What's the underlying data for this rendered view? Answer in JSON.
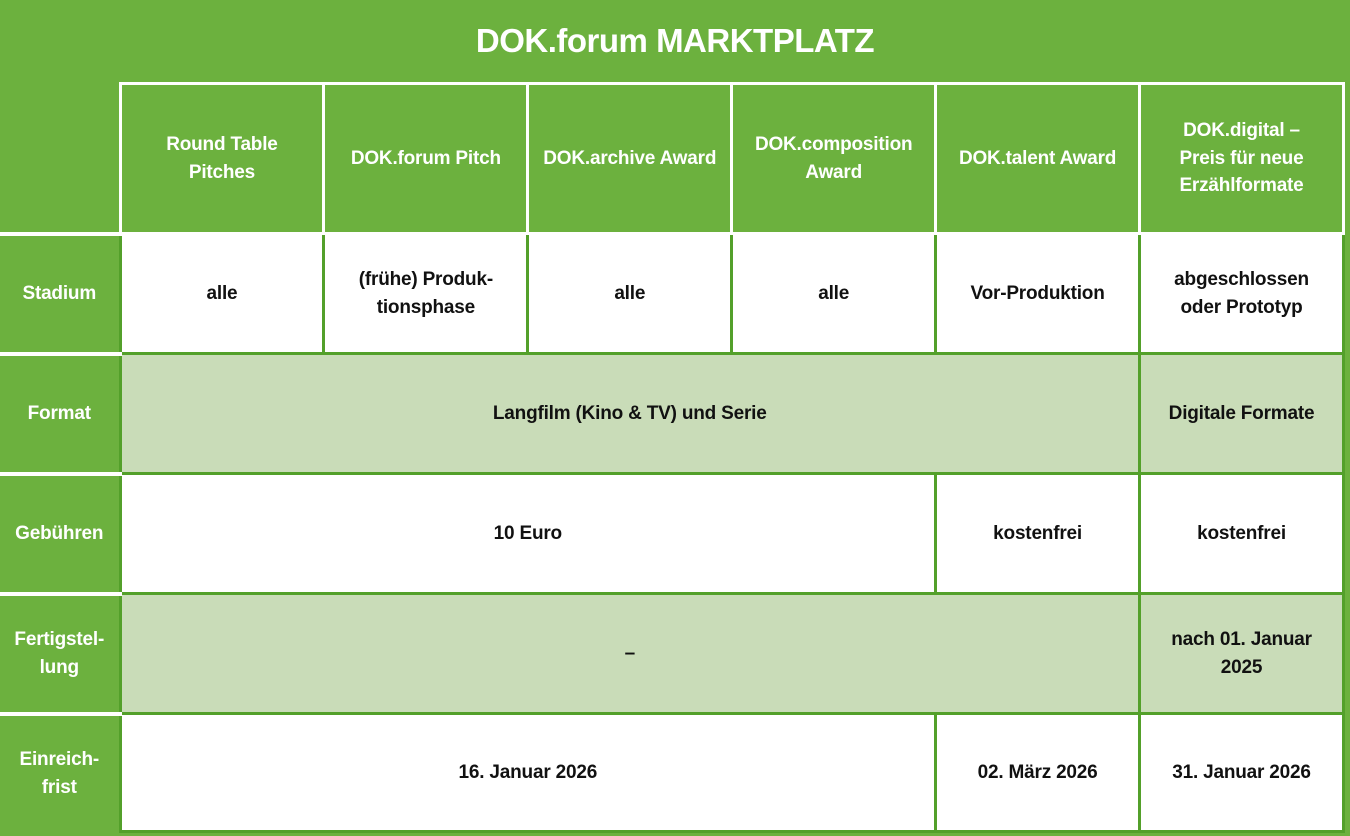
{
  "title": "DOK.forum MARKTPLATZ",
  "colors": {
    "green": "#6cb13e",
    "light_green": "#c9dcb8",
    "border_green": "#53a02a",
    "header_border_white": "#ffffff",
    "text_dark": "#111111",
    "text_white": "#ffffff"
  },
  "header": {
    "columns": [
      {
        "label": "Round Table\nPitches"
      },
      {
        "label": "DOK.forum Pitch"
      },
      {
        "label": "DOK.archive Award"
      },
      {
        "label": "DOK.composition\nAward"
      },
      {
        "label": "DOK.talent Award"
      },
      {
        "label": "DOK.digital –\nPreis für neue\nErzählformate"
      }
    ]
  },
  "rows": [
    {
      "label": "Stadium",
      "cells": [
        {
          "text": "alle",
          "span": 1
        },
        {
          "text": "(frühe) Produk-\ntionsphase",
          "span": 1
        },
        {
          "text": "alle",
          "span": 1
        },
        {
          "text": "alle",
          "span": 1
        },
        {
          "text": "Vor-Produktion",
          "span": 1
        },
        {
          "text": "abgeschlossen\noder Prototyp",
          "span": 1
        }
      ]
    },
    {
      "label": "Format",
      "cells": [
        {
          "text": "Langfilm (Kino & TV) und Serie",
          "span": 5
        },
        {
          "text": "Digitale Formate",
          "span": 1
        }
      ]
    },
    {
      "label": "Gebühren",
      "cells": [
        {
          "text": "10 Euro",
          "span": 4
        },
        {
          "text": "kostenfrei",
          "span": 1
        },
        {
          "text": "kostenfrei",
          "span": 1
        }
      ]
    },
    {
      "label": "Fertigstel-\nlung",
      "cells": [
        {
          "text": "–",
          "span": 5
        },
        {
          "text": "nach 01. Januar\n2025",
          "span": 1
        }
      ]
    },
    {
      "label": "Einreich-\nfrist",
      "cells": [
        {
          "text": "16. Januar 2026",
          "span": 4
        },
        {
          "text": "02. März 2026",
          "span": 1
        },
        {
          "text": "31. Januar 2026",
          "span": 1
        }
      ]
    }
  ],
  "chart_data": {
    "type": "table",
    "title": "DOK.forum MARKTPLATZ",
    "columns": [
      "Round Table Pitches",
      "DOK.forum Pitch",
      "DOK.archive Award",
      "DOK.composition Award",
      "DOK.talent Award",
      "DOK.digital – Preis für neue Erzählformate"
    ],
    "row_labels": [
      "Stadium",
      "Format",
      "Gebühren",
      "Fertigstellung",
      "Einreichfrist"
    ],
    "rows": [
      {
        "label": "Stadium",
        "values": [
          "alle",
          "(frühe) Produktionsphase",
          "alle",
          "alle",
          "Vor-Produktion",
          "abgeschlossen oder Prototyp"
        ]
      },
      {
        "label": "Format",
        "values": [
          "Langfilm (Kino & TV) und Serie",
          "Langfilm (Kino & TV) und Serie",
          "Langfilm (Kino & TV) und Serie",
          "Langfilm (Kino & TV) und Serie",
          "Langfilm (Kino & TV) und Serie",
          "Digitale Formate"
        ]
      },
      {
        "label": "Gebühren",
        "values": [
          "10 Euro",
          "10 Euro",
          "10 Euro",
          "10 Euro",
          "kostenfrei",
          "kostenfrei"
        ]
      },
      {
        "label": "Fertigstellung",
        "values": [
          "–",
          "–",
          "–",
          "–",
          "–",
          "nach 01. Januar 2025"
        ]
      },
      {
        "label": "Einreichfrist",
        "values": [
          "16. Januar 2026",
          "16. Januar 2026",
          "16. Januar 2026",
          "16. Januar 2026",
          "02. März 2026",
          "31. Januar 2026"
        ]
      }
    ],
    "merges": [
      {
        "row": "Format",
        "span_columns": [
          1,
          5
        ],
        "value": "Langfilm (Kino & TV) und Serie"
      },
      {
        "row": "Gebühren",
        "span_columns": [
          1,
          4
        ],
        "value": "10 Euro"
      },
      {
        "row": "Fertigstellung",
        "span_columns": [
          1,
          5
        ],
        "value": "–"
      },
      {
        "row": "Einreichfrist",
        "span_columns": [
          1,
          4
        ],
        "value": "16. Januar 2026"
      }
    ],
    "layout_hints": {
      "header_background": "green",
      "merged_full_rows_background": "light-green",
      "value_rows_background": "white"
    }
  }
}
